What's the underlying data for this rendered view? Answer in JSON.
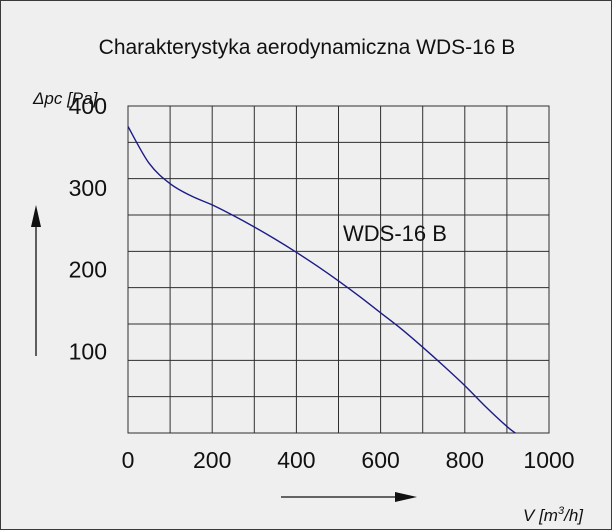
{
  "chart_data": {
    "type": "line",
    "title": "Charakterystyka aerodynamiczna WDS-16 B",
    "xlabel_main": "V [m",
    "xlabel_sup": "3",
    "xlabel_end": "/h]",
    "ylabel": "Δpc [Pa]",
    "xlim": [
      0,
      1000
    ],
    "ylim": [
      0,
      400
    ],
    "x_ticks": [
      "0",
      "200",
      "400",
      "600",
      "800",
      "1000"
    ],
    "y_ticks": [
      "100",
      "200",
      "300",
      "400"
    ],
    "grid": true,
    "series": [
      {
        "name": "WDS-16 B",
        "color": "#1c1c86",
        "x": [
          0,
          50,
          100,
          150,
          200,
          250,
          300,
          350,
          400,
          450,
          500,
          550,
          600,
          650,
          700,
          750,
          800,
          850,
          900,
          920
        ],
        "y": [
          375,
          330,
          305,
          290,
          279,
          266,
          252,
          237,
          221,
          204,
          186,
          167,
          147,
          127,
          105,
          82,
          58,
          32,
          8,
          0
        ]
      }
    ]
  }
}
